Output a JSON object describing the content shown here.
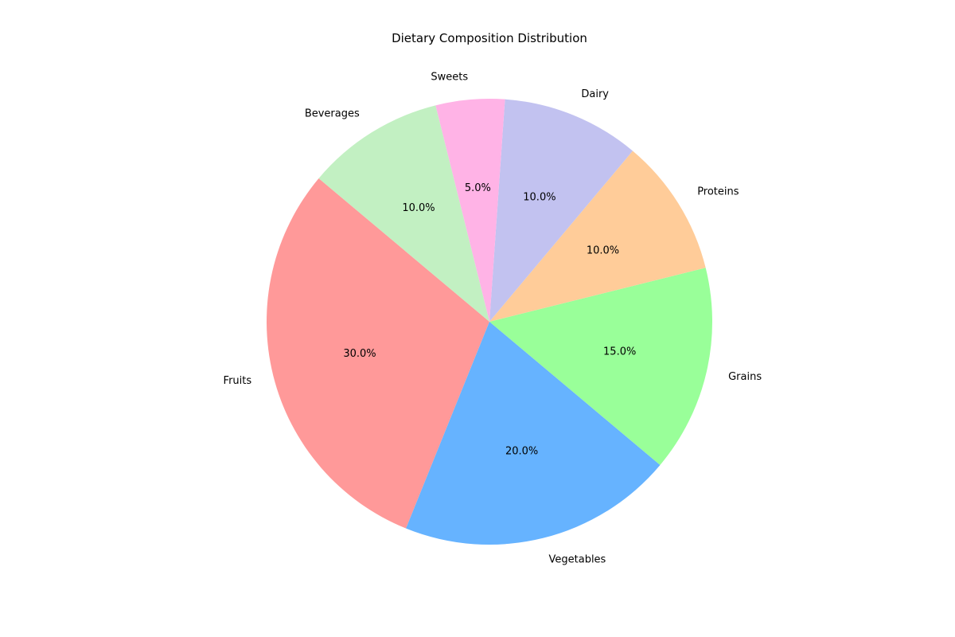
{
  "chart_data": {
    "type": "pie",
    "title": "Dietary Composition Distribution",
    "categories": [
      "Fruits",
      "Vegetables",
      "Grains",
      "Proteins",
      "Dairy",
      "Sweets",
      "Beverages"
    ],
    "values": [
      30,
      20,
      15,
      10,
      10,
      5,
      10
    ],
    "percent_labels": [
      "30.0%",
      "20.0%",
      "15.0%",
      "10.0%",
      "10.0%",
      "5.0%",
      "10.0%"
    ],
    "colors": [
      "#ff9999",
      "#66b3ff",
      "#99ff99",
      "#ffcc99",
      "#c2c2f0",
      "#ffb3e6",
      "#c2f0c2"
    ],
    "start_angle": 140,
    "direction": "counterclockwise",
    "legend": "none"
  }
}
